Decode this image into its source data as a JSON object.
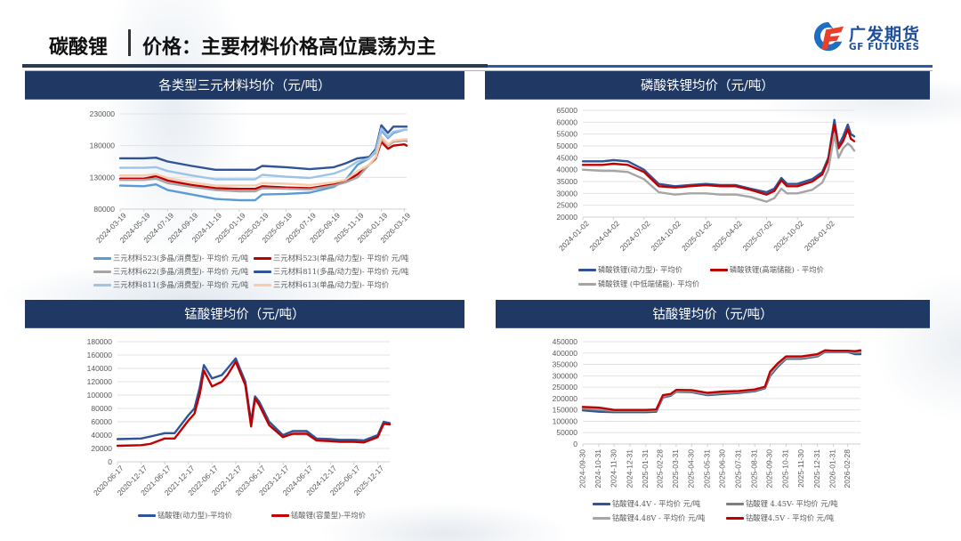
{
  "header": {
    "title": "碳酸锂",
    "subtitle": "价格：主要材料价格高位震荡为主"
  },
  "logo": {
    "cn": "广发期货",
    "en": "GF FUTURES",
    "colors": {
      "blue": "#1d6fc4",
      "red": "#e8402a"
    }
  },
  "colors": {
    "panel_header_bg": "#1f3864",
    "rule_dark": "#2b3a4e",
    "rule_blue": "#2d5aa6"
  },
  "panels": [
    {
      "title": "各类型三元材料均价（元/吨）"
    },
    {
      "title": "磷酸铁锂均价（元/吨）"
    },
    {
      "title": "锰酸锂均价（元/吨）"
    },
    {
      "title": "钴酸锂均价（元/吨）"
    }
  ],
  "chart_data": [
    {
      "type": "line",
      "title": "各类型三元材料均价（元/吨）",
      "xlabel": "",
      "ylabel": "",
      "ylim": [
        80000,
        230000
      ],
      "yticks": [
        80000,
        130000,
        180000,
        230000
      ],
      "grid": true,
      "legend_position": "bottom",
      "xticks": [
        "2024-03-19",
        "2024-05-19",
        "2024-07-19",
        "2024-09-19",
        "2024-11-19",
        "2025-01-19",
        "2025-03-19",
        "2025-05-19",
        "2025-07-19",
        "2025-09-19",
        "2025-11-19",
        "2026-01-19",
        "2026-03-19"
      ],
      "x": [
        "2024-03-19",
        "2024-05-19",
        "2024-06-19",
        "2024-07-19",
        "2024-09-19",
        "2024-11-19",
        "2025-01-19",
        "2025-03-01",
        "2025-03-19",
        "2025-05-19",
        "2025-07-19",
        "2025-09-19",
        "2025-10-19",
        "2025-11-19",
        "2025-12-19",
        "2026-01-05",
        "2026-01-19",
        "2026-02-05",
        "2026-02-19",
        "2026-03-19",
        "2026-03-25"
      ],
      "series": [
        {
          "name": "三元材料523(多晶/消费型)- 平均价 元/吨",
          "color": "#5b9bd5",
          "values": [
            117000,
            116000,
            119000,
            110000,
            103000,
            96000,
            94000,
            94000,
            103000,
            104000,
            106000,
            115000,
            126000,
            150000,
            160000,
            170000,
            204000,
            192000,
            200000,
            205000,
            205000
          ]
        },
        {
          "name": "三元材料523(单晶/动力型)- 平均价 元/吨",
          "color": "#c00000",
          "values": [
            128000,
            128000,
            132000,
            125000,
            118000,
            113000,
            112000,
            112000,
            116000,
            114000,
            113000,
            119000,
            123000,
            135000,
            150000,
            160000,
            186000,
            175000,
            180000,
            182000,
            180000
          ]
        },
        {
          "name": "三元材料622(多晶/消费型)- 平均价 元/吨",
          "color": "#a5a5a5",
          "values": [
            126000,
            126000,
            128000,
            121000,
            115000,
            110000,
            108000,
            108000,
            113000,
            112000,
            111000,
            117000,
            122000,
            130000,
            150000,
            162000,
            190000,
            180000,
            186000,
            188000,
            187000
          ]
        },
        {
          "name": "三元材料811(多晶/动力型)- 平均价 元/吨",
          "color": "#2f5597",
          "values": [
            160000,
            160000,
            161000,
            155000,
            148000,
            142000,
            142000,
            142000,
            148000,
            146000,
            143000,
            146000,
            152000,
            160000,
            162000,
            175000,
            212000,
            200000,
            210000,
            210000,
            210000
          ]
        },
        {
          "name": "三元材料811(多晶/消费型)- 平均价 元/吨",
          "color": "#9dc3e6",
          "values": [
            145000,
            145000,
            146000,
            140000,
            133000,
            127000,
            127000,
            127000,
            134000,
            131000,
            129000,
            136000,
            143000,
            155000,
            160000,
            172000,
            207000,
            194000,
            202000,
            205000,
            205000
          ]
        },
        {
          "name": "三元材料613(单晶/动力型)- 平均价",
          "color": "#f8cbad",
          "values": [
            133000,
            133000,
            135000,
            129000,
            122000,
            117000,
            117000,
            117000,
            121000,
            120000,
            118000,
            122000,
            126000,
            140000,
            150000,
            162000,
            194000,
            182000,
            188000,
            190000,
            190000
          ]
        }
      ]
    },
    {
      "type": "line",
      "title": "磷酸铁锂均价（元/吨）",
      "xlabel": "",
      "ylabel": "",
      "ylim": [
        20000,
        65000
      ],
      "yticks": [
        20000,
        25000,
        30000,
        35000,
        40000,
        45000,
        50000,
        55000,
        60000,
        65000
      ],
      "grid": true,
      "legend_position": "bottom",
      "xticks": [
        "2024-01-02",
        "2024-04-02",
        "2024-07-02",
        "2024-10-02",
        "2025-01-02",
        "2025-04-02",
        "2025-07-02",
        "2025-10-02",
        "2026-01-02"
      ],
      "x": [
        "2024-01-02",
        "2024-03-01",
        "2024-04-02",
        "2024-05-15",
        "2024-07-02",
        "2024-08-15",
        "2024-10-02",
        "2024-11-15",
        "2025-01-02",
        "2025-02-15",
        "2025-04-02",
        "2025-05-15",
        "2025-07-02",
        "2025-07-25",
        "2025-08-15",
        "2025-09-01",
        "2025-10-02",
        "2025-11-15",
        "2025-12-15",
        "2026-01-02",
        "2026-01-20",
        "2026-02-01",
        "2026-02-15",
        "2026-03-01",
        "2026-03-10",
        "2026-03-20"
      ],
      "series": [
        {
          "name": "磷酸铁锂(动力型)- 平均价",
          "color": "#2f5597",
          "values": [
            43500,
            43500,
            44000,
            43500,
            40000,
            34000,
            33000,
            33500,
            34000,
            33500,
            33500,
            32000,
            30500,
            32000,
            36500,
            34000,
            34000,
            36000,
            39000,
            45000,
            61000,
            50000,
            54000,
            59000,
            55000,
            54000
          ]
        },
        {
          "name": "磷酸铁锂(高端储能) - 平均价",
          "color": "#c00000",
          "values": [
            42000,
            42000,
            42500,
            42000,
            39000,
            33000,
            32500,
            33000,
            33500,
            33000,
            33000,
            31500,
            29500,
            31000,
            35500,
            33000,
            33000,
            35000,
            38000,
            44000,
            59000,
            49000,
            52000,
            57000,
            53000,
            52000
          ]
        },
        {
          "name": "磷酸铁锂 (中低端储能)- 平均价",
          "color": "#a5a5a5",
          "values": [
            40000,
            39500,
            39500,
            39000,
            36000,
            30500,
            29500,
            30000,
            30000,
            29500,
            29500,
            28500,
            26500,
            28000,
            32000,
            30000,
            30000,
            31500,
            34500,
            40000,
            55000,
            45000,
            49000,
            51000,
            50000,
            48000
          ]
        }
      ]
    },
    {
      "type": "line",
      "title": "锰酸锂均价（元/吨）",
      "xlabel": "",
      "ylabel": "",
      "ylim": [
        0,
        180000
      ],
      "yticks": [
        0,
        20000,
        40000,
        60000,
        80000,
        100000,
        120000,
        140000,
        160000,
        180000
      ],
      "grid": true,
      "legend_position": "bottom",
      "xticks": [
        "2020-06-17",
        "2020-12-17",
        "2021-06-17",
        "2021-12-17",
        "2022-06-17",
        "2022-12-17",
        "2023-06-17",
        "2023-12-17",
        "2024-06-17",
        "2024-12-17",
        "2025-06-17",
        "2025-12-17"
      ],
      "x": [
        "2020-06-17",
        "2020-12-17",
        "2021-03-01",
        "2021-06-17",
        "2021-09-01",
        "2021-12-17",
        "2022-02-01",
        "2022-03-15",
        "2022-04-15",
        "2022-06-17",
        "2022-09-01",
        "2022-10-15",
        "2022-12-17",
        "2023-03-01",
        "2023-04-15",
        "2023-05-15",
        "2023-06-17",
        "2023-09-01",
        "2023-12-17",
        "2024-03-01",
        "2024-06-17",
        "2024-09-01",
        "2024-12-17",
        "2025-03-01",
        "2025-06-17",
        "2025-09-01",
        "2025-12-17",
        "2026-02-01",
        "2026-03-20"
      ],
      "series": [
        {
          "name": "锰酸锂(动力型)-平均价",
          "color": "#2f5597",
          "values": [
            34000,
            35000,
            38000,
            43000,
            43000,
            70000,
            80000,
            112000,
            145000,
            125000,
            130000,
            140000,
            155000,
            120000,
            60000,
            98000,
            90000,
            60000,
            40000,
            46000,
            46000,
            35000,
            34000,
            33000,
            33000,
            32000,
            40000,
            60000,
            58000
          ]
        },
        {
          "name": "锰酸锂(容量型)-平均价",
          "color": "#c00000",
          "values": [
            24000,
            25000,
            27000,
            35000,
            35000,
            62000,
            72000,
            102000,
            137000,
            113000,
            120000,
            130000,
            150000,
            115000,
            53000,
            95000,
            85000,
            55000,
            37000,
            42000,
            42000,
            32000,
            31000,
            30000,
            30000,
            29000,
            37000,
            57000,
            56000
          ]
        }
      ]
    },
    {
      "type": "line",
      "title": "钴酸锂均价（元/吨）",
      "xlabel": "",
      "ylabel": "",
      "ylim": [
        0,
        450000
      ],
      "yticks": [
        0,
        50000,
        100000,
        150000,
        200000,
        250000,
        300000,
        350000,
        400000,
        450000
      ],
      "grid": true,
      "legend_position": "bottom",
      "xticks": [
        "2024-09-30",
        "2024-10-31",
        "2024-11-30",
        "2024-12-31",
        "2025-01-31",
        "2025-02-28",
        "2025-03-31",
        "2025-04-30",
        "2025-05-31",
        "2025-06-30",
        "2025-07-31",
        "2025-08-31",
        "2025-09-30",
        "2025-10-31",
        "2025-11-30",
        "2025-12-31",
        "2026-01-31",
        "2026-02-28"
      ],
      "x": [
        "2024-09-30",
        "2024-10-31",
        "2024-11-30",
        "2024-12-31",
        "2025-01-31",
        "2025-02-20",
        "2025-03-05",
        "2025-03-20",
        "2025-03-31",
        "2025-04-30",
        "2025-05-31",
        "2025-06-30",
        "2025-07-31",
        "2025-08-31",
        "2025-09-20",
        "2025-09-30",
        "2025-10-15",
        "2025-10-31",
        "2025-11-30",
        "2025-12-31",
        "2026-01-15",
        "2026-01-31",
        "2026-02-28",
        "2026-03-15",
        "2026-03-25"
      ],
      "series": [
        {
          "name": "钴酸锂4.4V - 平均价 元/吨",
          "color": "#2f5597",
          "values": [
            148000,
            142000,
            140000,
            140000,
            140000,
            142000,
            205000,
            212000,
            230000,
            228000,
            215000,
            220000,
            225000,
            232000,
            245000,
            300000,
            340000,
            375000,
            375000,
            385000,
            405000,
            405000,
            405000,
            395000,
            395000
          ]
        },
        {
          "name": "钴酸锂 4.45V- 平均价 元/吨",
          "color": "#7f7f7f",
          "values": [
            155000,
            150000,
            145000,
            145000,
            145000,
            146000,
            208000,
            215000,
            232000,
            231000,
            218000,
            224000,
            228000,
            235000,
            248000,
            305000,
            345000,
            378000,
            378000,
            388000,
            408000,
            407000,
            407000,
            402000,
            403000
          ]
        },
        {
          "name": "钴酸锂4.48V - 平均价 元/吨",
          "color": "#a5a5a5",
          "values": [
            160000,
            155000,
            148000,
            148000,
            148000,
            150000,
            212000,
            218000,
            235000,
            234000,
            222000,
            228000,
            231000,
            238000,
            250000,
            310000,
            350000,
            381000,
            381000,
            391000,
            410000,
            409000,
            409000,
            405000,
            407000
          ]
        },
        {
          "name": "钴酸锂4.5V - 平均价 元/吨",
          "color": "#c00000",
          "values": [
            163000,
            160000,
            150000,
            150000,
            150000,
            152000,
            215000,
            220000,
            238000,
            237000,
            225000,
            231000,
            233000,
            240000,
            252000,
            318000,
            355000,
            385000,
            385000,
            395000,
            412000,
            410000,
            410000,
            408000,
            412000
          ]
        }
      ]
    }
  ]
}
